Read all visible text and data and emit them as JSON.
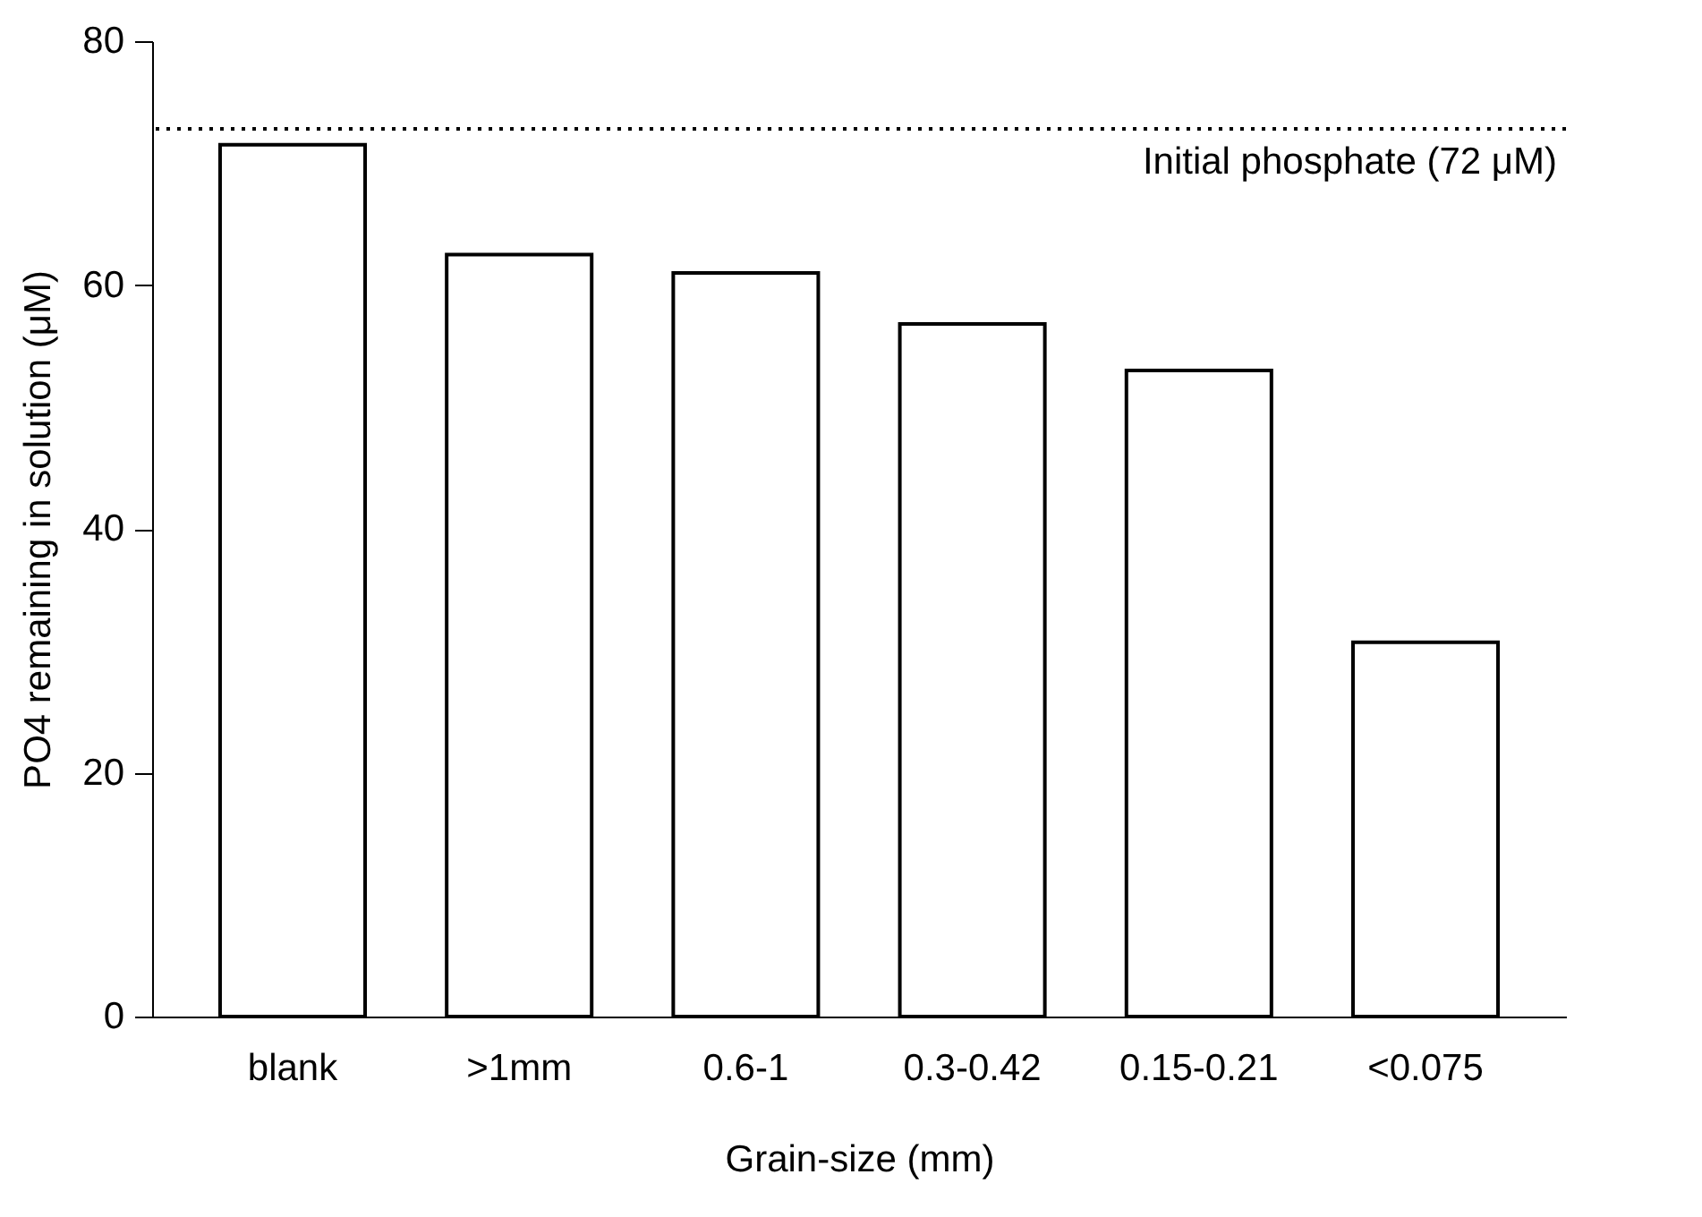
{
  "chart_data": {
    "type": "bar",
    "xlabel": "Grain-size (mm)",
    "ylabel": "PO4 remaining in solution (μM)",
    "categories": [
      "blank",
      ">1mm",
      "0.6-1",
      "0.3-0.42",
      "0.15-0.21",
      "<0.075"
    ],
    "values": [
      71.5,
      62.5,
      61,
      56.8,
      53,
      30.7
    ],
    "color": "#ffffff",
    "ylim": [
      0,
      80
    ],
    "yticks": [
      0,
      20,
      40,
      60,
      80
    ],
    "ref_lines": [
      {
        "axis": "y",
        "value": 72.8,
        "label": "Initial phosphate (72 μM)",
        "color": "#000000",
        "line_style": "dotted"
      }
    ]
  }
}
